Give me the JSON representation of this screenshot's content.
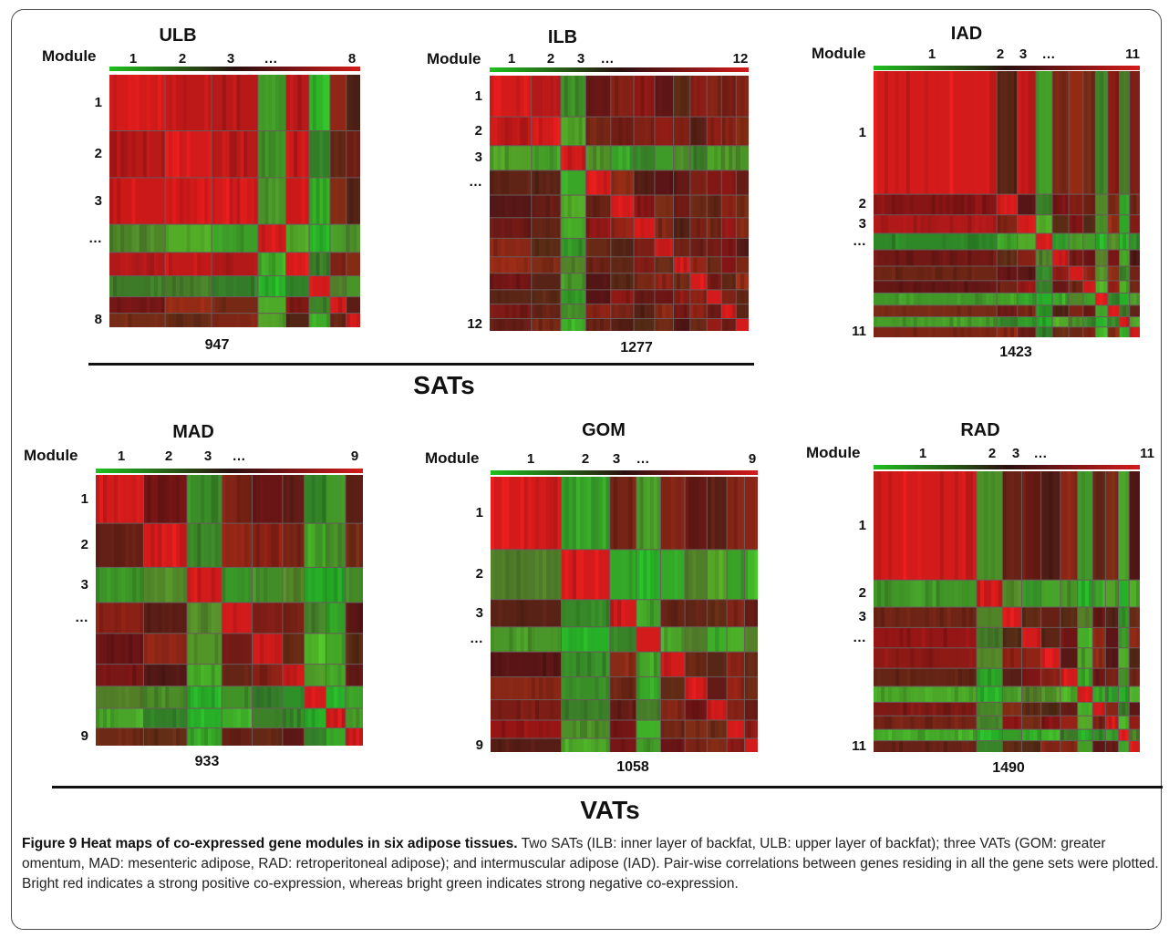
{
  "module_label": "Module",
  "colors": {
    "green": "#1fbf1f",
    "red": "#d41b1b",
    "dark": "#2a1010",
    "rule": "#111111"
  },
  "panels": [
    {
      "id": "ULB",
      "title": "ULB",
      "top_labels": [
        "1",
        "2",
        "3",
        "…",
        "8"
      ],
      "side_labels": [
        "1",
        "2",
        "3",
        "…",
        "8"
      ],
      "count": "947",
      "module_sizes": [
        1.2,
        1,
        1,
        0.6,
        0.5,
        0.45,
        0.35,
        0.3
      ],
      "pattern": [
        0,
        0,
        0,
        2,
        0,
        2,
        1,
        1
      ]
    },
    {
      "id": "ILB",
      "title": "ILB",
      "top_labels": [
        "1",
        "2",
        "3",
        "…",
        "12"
      ],
      "side_labels": [
        "1",
        "2",
        "3",
        "…",
        "12"
      ],
      "count": "1277",
      "module_sizes": [
        1,
        0.7,
        0.6,
        0.6,
        0.55,
        0.5,
        0.45,
        0.4,
        0.4,
        0.35,
        0.35,
        0.3
      ],
      "pattern": [
        0,
        0,
        2,
        1,
        1,
        1,
        1,
        1,
        1,
        1,
        1,
        1
      ]
    },
    {
      "id": "IAD",
      "title": "IAD",
      "top_labels": [
        "1",
        "2",
        "3",
        "…",
        "11"
      ],
      "side_labels": [
        "1",
        "2",
        "3",
        "…",
        "11"
      ],
      "count": "1423",
      "module_sizes": [
        3,
        0.5,
        0.45,
        0.4,
        0.4,
        0.35,
        0.3,
        0.3,
        0.28,
        0.25,
        0.25
      ],
      "pattern": [
        0,
        1,
        0,
        2,
        1,
        1,
        1,
        2,
        1,
        2,
        1
      ]
    },
    {
      "id": "MAD",
      "title": "MAD",
      "top_labels": [
        "1",
        "2",
        "3",
        "…",
        "9"
      ],
      "side_labels": [
        "1",
        "2",
        "3",
        "…",
        "9"
      ],
      "count": "933",
      "module_sizes": [
        1.1,
        1,
        0.8,
        0.7,
        0.7,
        0.5,
        0.5,
        0.45,
        0.4
      ],
      "pattern": [
        0,
        1,
        2,
        1,
        1,
        1,
        2,
        2,
        1
      ]
    },
    {
      "id": "GOM",
      "title": "GOM",
      "top_labels": [
        "1",
        "2",
        "3",
        "…",
        "9"
      ],
      "side_labels": [
        "1",
        "2",
        "3",
        "…",
        "9"
      ],
      "count": "1058",
      "module_sizes": [
        1.6,
        1.1,
        0.6,
        0.55,
        0.55,
        0.5,
        0.45,
        0.4,
        0.3
      ],
      "pattern": [
        0,
        2,
        1,
        2,
        1,
        1,
        1,
        1,
        1
      ]
    },
    {
      "id": "RAD",
      "title": "RAD",
      "top_labels": [
        "1",
        "2",
        "3",
        "…",
        "11"
      ],
      "side_labels": [
        "1",
        "2",
        "3",
        "…",
        "11"
      ],
      "count": "1490",
      "module_sizes": [
        2.4,
        0.6,
        0.45,
        0.45,
        0.45,
        0.4,
        0.35,
        0.3,
        0.3,
        0.25,
        0.25
      ],
      "pattern": [
        0,
        2,
        1,
        1,
        1,
        1,
        2,
        1,
        1,
        2,
        1
      ]
    }
  ],
  "groups": {
    "top": "SATs",
    "bottom": "VATs"
  },
  "caption": {
    "title": "Figure 9 Heat maps of co-expressed gene modules in six adipose tissues.",
    "body": "Two SATs (ILB: inner layer of backfat, ULB: upper layer of backfat); three VATs (GOM: greater omentum, MAD: mesenteric adipose, RAD: retroperitoneal adipose); and intermuscular adipose (IAD). Pair-wise correlations between genes residing in all the gene sets were plotted. Bright red indicates a strong positive co-expression, whereas bright green indicates strong negative co-expression."
  }
}
